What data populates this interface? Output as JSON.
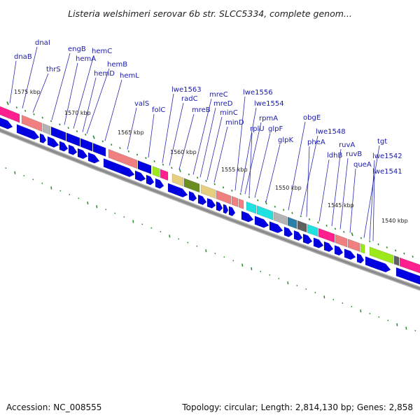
{
  "title": "Listeria welshimeri serovar 6b str. SLCC5334, complete genom...",
  "footer": {
    "accession": "Accession: NC_008555",
    "summary": "Topology: circular; Length: 2,814,130 bp; Genes: 2,858"
  },
  "colors": {
    "blue_cds": "#0000e0",
    "blue_dark": "#0000a8",
    "pink": "#ff1f8e",
    "salmon": "#f08080",
    "gray": "#b4b4b4",
    "olive": "#6b8e23",
    "khaki": "#e6d080",
    "cyan": "#20e0e0",
    "teal": "#2a7fa8",
    "darkgray": "#606060",
    "lime": "#9ce81a",
    "backbone": "#8a8a8a",
    "tick_green": "#2a8a2a",
    "label_blue": "#1a1aa8"
  },
  "kbp_marks": [
    {
      "label": "1575 kbp"
    },
    {
      "label": "1570 kbp"
    },
    {
      "label": "1565 kbp"
    },
    {
      "label": "1560 kbp"
    },
    {
      "label": "1555 kbp"
    },
    {
      "label": "1550 kbp"
    },
    {
      "label": "1545 kbp"
    },
    {
      "label": "1540 kbp"
    }
  ],
  "gene_labels": [
    {
      "name": "dnaB"
    },
    {
      "name": "dnaI"
    },
    {
      "name": "thrS"
    },
    {
      "name": "engB"
    },
    {
      "name": "hemA"
    },
    {
      "name": "hemC"
    },
    {
      "name": "hemD"
    },
    {
      "name": "hemB"
    },
    {
      "name": "hemL"
    },
    {
      "name": "valS"
    },
    {
      "name": "folC"
    },
    {
      "name": "lwe1563"
    },
    {
      "name": "radC"
    },
    {
      "name": "mreB"
    },
    {
      "name": "mreC"
    },
    {
      "name": "mreD"
    },
    {
      "name": "minC"
    },
    {
      "name": "minD"
    },
    {
      "name": "lwe1556"
    },
    {
      "name": "lwe1554"
    },
    {
      "name": "rpmA"
    },
    {
      "name": "rplU"
    },
    {
      "name": "glpF"
    },
    {
      "name": "glpK"
    },
    {
      "name": "obgE"
    },
    {
      "name": "lwe1548"
    },
    {
      "name": "pheA"
    },
    {
      "name": "ldhB"
    },
    {
      "name": "ruvA"
    },
    {
      "name": "ruvB"
    },
    {
      "name": "queA"
    },
    {
      "name": "tgt"
    },
    {
      "name": "lwe1542"
    },
    {
      "name": "lwe1541"
    }
  ]
}
